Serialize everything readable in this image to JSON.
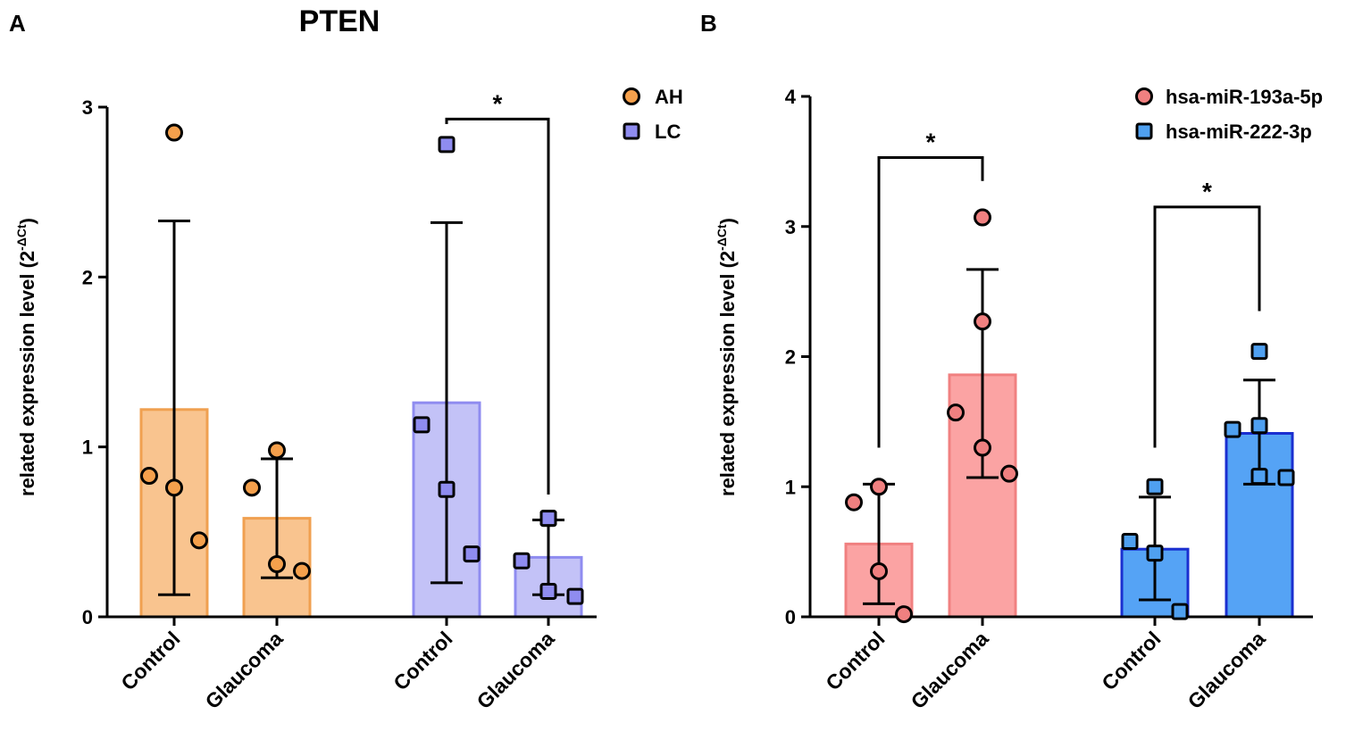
{
  "chart_data": [
    {
      "panel": "A",
      "type": "bar",
      "title": "PTEN",
      "ylabel": "related expression level (2",
      "ylabel_sup": "-ΔCt",
      "ylabel_close": ")",
      "ylim": [
        0,
        3
      ],
      "yticks": [
        0,
        1,
        2,
        3
      ],
      "categories": [
        "Control",
        "Glaucoma",
        "Control",
        "Glaucoma"
      ],
      "legend": [
        {
          "name": "AH",
          "marker": "circle",
          "color": "#f5a04c"
        },
        {
          "name": "LC",
          "marker": "square",
          "color": "#8f8cf0"
        }
      ],
      "bars": [
        {
          "series": "AH",
          "category": "Control",
          "value": 1.22,
          "err_low": 0.13,
          "err_high": 2.33,
          "points": [
            2.85,
            0.83,
            0.76,
            0.45
          ],
          "fill": "#f9c48f",
          "stroke": "#f0a050",
          "point_fill": "#f5a04c"
        },
        {
          "series": "AH",
          "category": "Glaucoma",
          "value": 0.58,
          "err_low": 0.23,
          "err_high": 0.93,
          "points": [
            0.98,
            0.76,
            0.27,
            0.31
          ],
          "fill": "#f9c48f",
          "stroke": "#f0a050",
          "point_fill": "#f5a04c"
        },
        {
          "series": "LC",
          "category": "Control",
          "value": 1.26,
          "err_low": 0.2,
          "err_high": 2.32,
          "points": [
            2.78,
            1.13,
            0.75,
            0.37
          ],
          "fill": "#c3c2f7",
          "stroke": "#8f8cf0",
          "point_fill": "#8f8cf0"
        },
        {
          "series": "LC",
          "category": "Glaucoma",
          "value": 0.35,
          "err_low": 0.13,
          "err_high": 0.57,
          "points": [
            0.58,
            0.58,
            0.33,
            0.12,
            0.15
          ],
          "fill": "#c3c2f7",
          "stroke": "#8f8cf0",
          "point_fill": "#8f8cf0"
        }
      ],
      "annotations": [
        {
          "text": "*",
          "between": [
            2,
            3
          ],
          "y_bracket": 2.93,
          "y_left": 2.9,
          "y_right": 0.72
        }
      ]
    },
    {
      "panel": "B",
      "type": "bar",
      "title": "",
      "ylabel": "related expression level (2",
      "ylabel_sup": "-ΔCt",
      "ylabel_close": ")",
      "ylim": [
        0,
        4
      ],
      "yticks": [
        0,
        1,
        2,
        3,
        4
      ],
      "categories": [
        "Control",
        "Glaucoma",
        "Control",
        "Glaucoma"
      ],
      "legend": [
        {
          "name": "hsa-miR-193a-5p",
          "marker": "circle",
          "color": "#f08080"
        },
        {
          "name": "hsa-miR-222-3p",
          "marker": "square",
          "color": "#4fa0f0"
        }
      ],
      "bars": [
        {
          "series": "hsa-miR-193a-5p",
          "category": "Control",
          "value": 0.56,
          "err_low": 0.1,
          "err_high": 1.02,
          "points": [
            1.0,
            0.88,
            0.35,
            0.02
          ],
          "fill": "#fba3a3",
          "stroke": "#f08080",
          "point_fill": "#f08080"
        },
        {
          "series": "hsa-miR-193a-5p",
          "category": "Glaucoma",
          "value": 1.86,
          "err_low": 1.07,
          "err_high": 2.67,
          "points": [
            3.07,
            2.27,
            1.57,
            1.3,
            1.1
          ],
          "fill": "#fba3a3",
          "stroke": "#f08080",
          "point_fill": "#f08080"
        },
        {
          "series": "hsa-miR-222-3p",
          "category": "Control",
          "value": 0.52,
          "err_low": 0.13,
          "err_high": 0.92,
          "points": [
            1.0,
            0.58,
            0.49,
            0.04
          ],
          "fill": "#55a3f5",
          "stroke": "#1a2fd0",
          "point_fill": "#4fa0f0"
        },
        {
          "series": "hsa-miR-222-3p",
          "category": "Glaucoma",
          "value": 1.41,
          "err_low": 1.02,
          "err_high": 1.82,
          "points": [
            2.04,
            1.47,
            1.44,
            1.07,
            1.08
          ],
          "fill": "#55a3f5",
          "stroke": "#1a2fd0",
          "point_fill": "#4fa0f0"
        }
      ],
      "annotations": [
        {
          "text": "*",
          "between": [
            0,
            1
          ],
          "y_bracket": 3.53,
          "y_left": 1.3,
          "y_right": 3.35
        },
        {
          "text": "*",
          "between": [
            2,
            3
          ],
          "y_bracket": 3.15,
          "y_left": 1.3,
          "y_right": 2.35
        }
      ]
    }
  ]
}
